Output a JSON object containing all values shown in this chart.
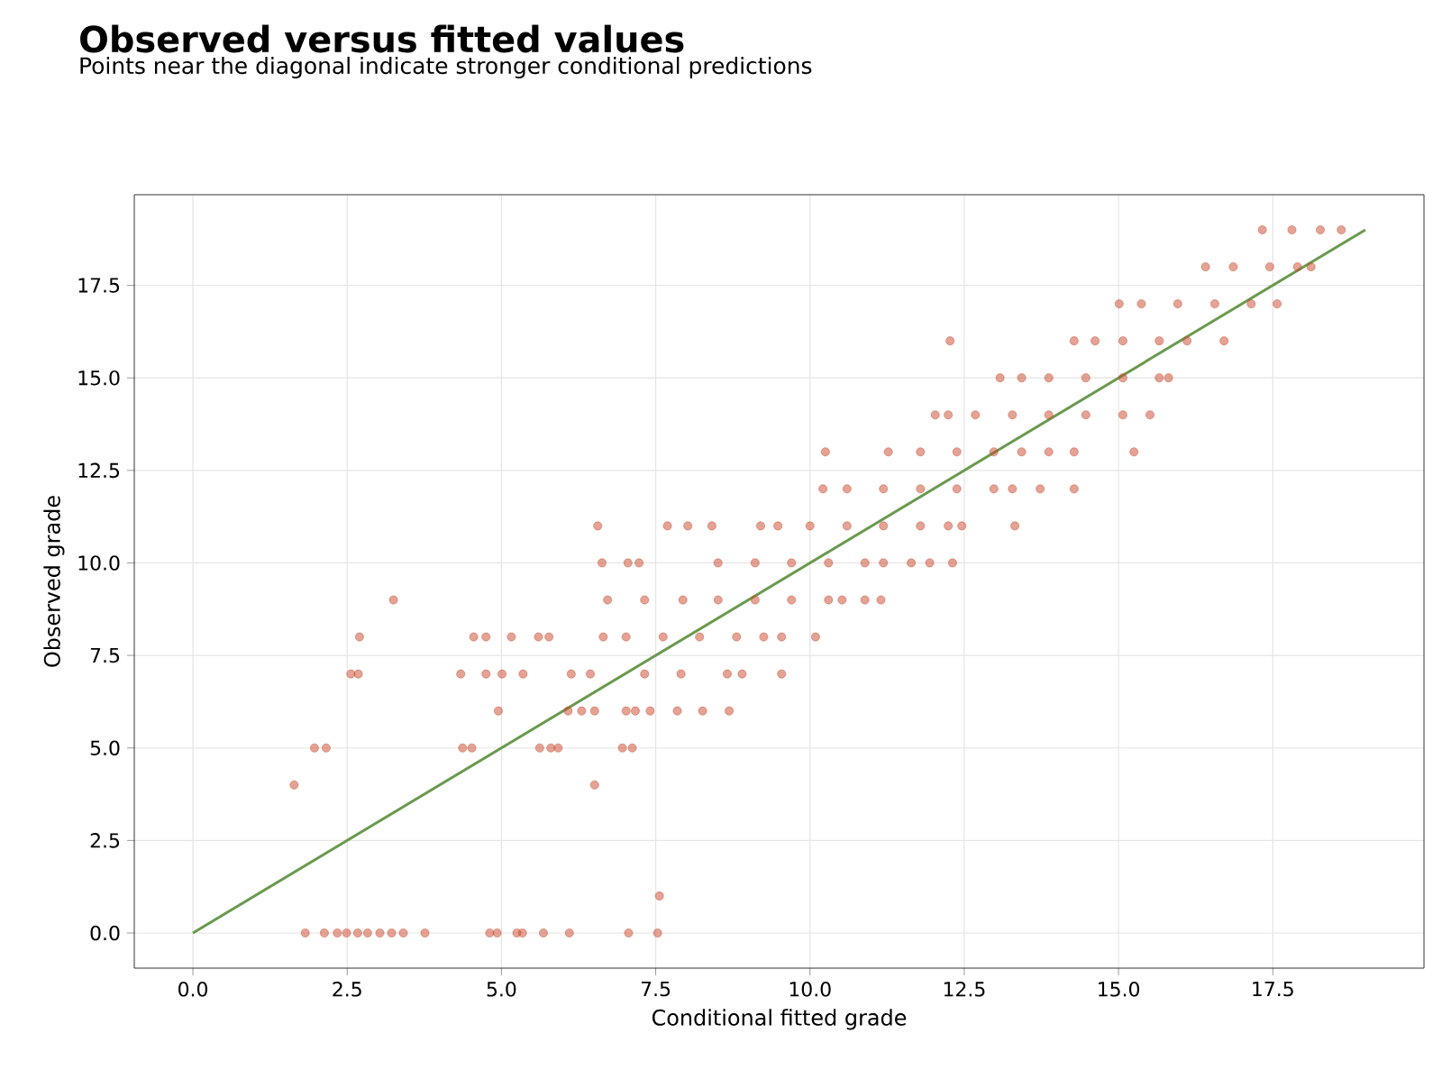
{
  "chart_data": {
    "type": "scatter",
    "title": "Observed versus fitted values",
    "subtitle": "Points near the diagonal indicate stronger conditional predictions",
    "xlabel": "Conditional fitted grade",
    "ylabel": "Observed grade",
    "xlim": [
      -0.95,
      19.95
    ],
    "ylim": [
      -0.95,
      19.95
    ],
    "xticks": [
      {
        "value": 0,
        "label": "0.0"
      },
      {
        "value": 2.5,
        "label": "2.5"
      },
      {
        "value": 5,
        "label": "5.0"
      },
      {
        "value": 7.5,
        "label": "7.5"
      },
      {
        "value": 10,
        "label": "10.0"
      },
      {
        "value": 12.5,
        "label": "12.5"
      },
      {
        "value": 15,
        "label": "15.0"
      },
      {
        "value": 17.5,
        "label": "17.5"
      }
    ],
    "yticks": [
      {
        "value": 0,
        "label": "0.0"
      },
      {
        "value": 2.5,
        "label": "2.5"
      },
      {
        "value": 5,
        "label": "5.0"
      },
      {
        "value": 7.5,
        "label": "7.5"
      },
      {
        "value": 10,
        "label": "10.0"
      },
      {
        "value": 12.5,
        "label": "12.5"
      },
      {
        "value": 15,
        "label": "15.0"
      },
      {
        "value": 17.5,
        "label": "17.5"
      }
    ],
    "grid": true,
    "series": [
      {
        "color": "#c9472a",
        "marker": "circle",
        "x": [
          1.82,
          2.13,
          2.34,
          2.49,
          2.67,
          2.83,
          3.03,
          3.22,
          3.41,
          3.76,
          4.81,
          4.93,
          5.25,
          5.34,
          5.68,
          6.1,
          7.06,
          7.53,
          7.56,
          1.64,
          6.51,
          1.97,
          2.16,
          4.37,
          4.52,
          5.62,
          5.8,
          5.92,
          6.96,
          7.12,
          4.95,
          6.08,
          6.3,
          6.51,
          7.02,
          7.17,
          7.41,
          7.85,
          8.26,
          8.69,
          2.56,
          2.68,
          4.34,
          4.75,
          5.01,
          5.35,
          6.13,
          6.44,
          7.32,
          7.91,
          8.66,
          8.9,
          9.54,
          2.7,
          4.55,
          4.75,
          5.16,
          5.6,
          5.77,
          6.65,
          7.02,
          7.62,
          8.21,
          8.81,
          9.25,
          9.54,
          10.09,
          3.25,
          6.72,
          7.32,
          7.94,
          8.51,
          9.11,
          9.7,
          10.3,
          10.52,
          10.89,
          11.15,
          6.63,
          7.05,
          7.23,
          8.51,
          9.11,
          9.7,
          10.3,
          10.89,
          11.19,
          11.64,
          11.94,
          12.31,
          6.56,
          7.69,
          8.02,
          8.41,
          9.2,
          9.48,
          10.0,
          10.6,
          11.19,
          11.79,
          12.24,
          12.46,
          13.32,
          10.21,
          10.6,
          11.19,
          11.79,
          12.38,
          12.98,
          13.28,
          13.73,
          14.28,
          10.25,
          11.27,
          11.79,
          12.38,
          12.98,
          13.43,
          13.87,
          14.28,
          15.25,
          12.03,
          12.24,
          12.68,
          13.28,
          13.87,
          14.47,
          15.07,
          15.51,
          13.08,
          13.43,
          13.87,
          14.47,
          15.07,
          15.66,
          15.81,
          12.27,
          14.28,
          14.62,
          15.07,
          15.66,
          16.11,
          16.71,
          15.01,
          15.37,
          15.96,
          16.56,
          17.15,
          17.57,
          16.41,
          16.86,
          17.45,
          17.9,
          18.12,
          17.33,
          17.81,
          18.27,
          18.61
        ],
        "values": [
          0,
          0,
          0,
          0,
          0,
          0,
          0,
          0,
          0,
          0,
          0,
          0,
          0,
          0,
          0,
          0,
          0,
          0,
          1,
          4,
          4,
          5,
          5,
          5,
          5,
          5,
          5,
          5,
          5,
          5,
          6,
          6,
          6,
          6,
          6,
          6,
          6,
          6,
          6,
          6,
          7,
          7,
          7,
          7,
          7,
          7,
          7,
          7,
          7,
          7,
          7,
          7,
          7,
          8,
          8,
          8,
          8,
          8,
          8,
          8,
          8,
          8,
          8,
          8,
          8,
          8,
          8,
          9,
          9,
          9,
          9,
          9,
          9,
          9,
          9,
          9,
          9,
          9,
          10,
          10,
          10,
          10,
          10,
          10,
          10,
          10,
          10,
          10,
          10,
          10,
          11,
          11,
          11,
          11,
          11,
          11,
          11,
          11,
          11,
          11,
          11,
          11,
          11,
          12,
          12,
          12,
          12,
          12,
          12,
          12,
          12,
          12,
          13,
          13,
          13,
          13,
          13,
          13,
          13,
          13,
          13,
          14,
          14,
          14,
          14,
          14,
          14,
          14,
          14,
          15,
          15,
          15,
          15,
          15,
          15,
          15,
          16,
          16,
          16,
          16,
          16,
          16,
          16,
          17,
          17,
          17,
          17,
          17,
          17,
          18,
          18,
          18,
          18,
          18,
          19,
          19,
          19,
          19
        ]
      },
      {
        "type": "line",
        "color": "#6a994e",
        "x": [
          0,
          19
        ],
        "values": [
          0,
          19
        ]
      }
    ]
  }
}
